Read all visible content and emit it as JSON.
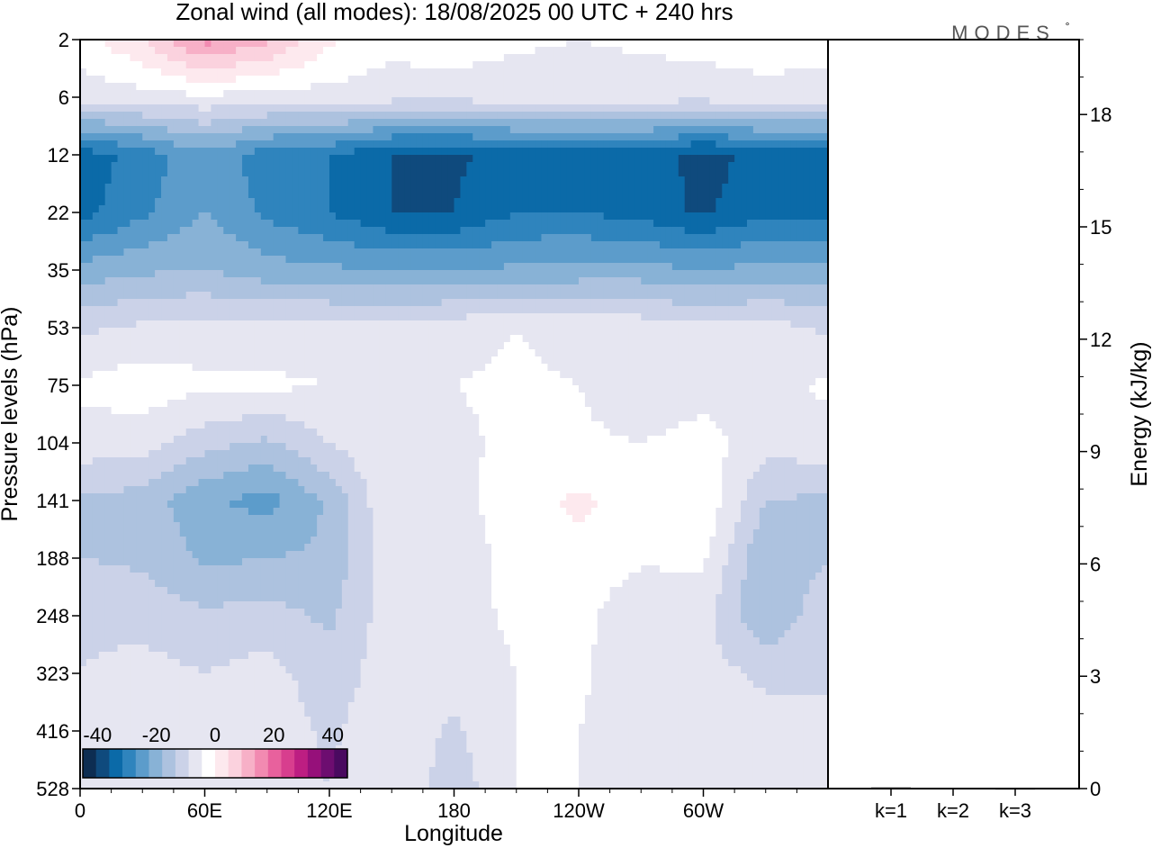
{
  "chart_data": {
    "type": "heatmap",
    "title": "Zonal wind (all modes):  18/08/2025  00 UTC  + 240 hrs",
    "logo": "MODES",
    "logo_mark": "°",
    "xlabel": "Longitude",
    "ylabel": "Pressure levels (hPa)",
    "x_ticks": [
      "0",
      "60E",
      "120E",
      "180",
      "120W",
      "60W"
    ],
    "x_tick_degrees": [
      0,
      60,
      120,
      180,
      240,
      300
    ],
    "x_range_deg": [
      0,
      360
    ],
    "y_ticks": [
      "2",
      "6",
      "12",
      "22",
      "35",
      "53",
      "75",
      "104",
      "141",
      "188",
      "248",
      "323",
      "416",
      "528"
    ],
    "y_axis": "pressure levels, top to bottom",
    "colorbar": {
      "ticks": [
        "-40",
        "-20",
        "0",
        "20",
        "40"
      ],
      "range": [
        -45,
        45
      ],
      "step": 5,
      "colors": [
        "#0d2d52",
        "#0f4a7d",
        "#0b6aa8",
        "#2f84bd",
        "#5c9ccb",
        "#88b2d6",
        "#adc2df",
        "#cbd2e8",
        "#e6e6f1",
        "#ffffff",
        "#fde9ee",
        "#fbd2de",
        "#f7b0c7",
        "#f28ab1",
        "#e8619d",
        "#d83e8e",
        "#bd1e82",
        "#96107a",
        "#6d0d70",
        "#4a0a60"
      ]
    },
    "wind_field": {
      "description": "Zonal wind (m/s) vs longitude and pressure level",
      "longitudes": [
        0,
        30,
        60,
        90,
        120,
        150,
        180,
        210,
        240,
        270,
        300,
        330,
        360
      ],
      "rows": [
        {
          "level": "2",
          "values": [
            3,
            10,
            22,
            16,
            6,
            2,
            3,
            1,
            0,
            1,
            2,
            3,
            3
          ]
        },
        {
          "level": "6",
          "values": [
            -3,
            -2,
            -1,
            -2,
            -2,
            -3,
            -3,
            -3,
            -3,
            -3,
            -3,
            -2,
            -3
          ]
        },
        {
          "level": "12",
          "values": [
            -33,
            -28,
            -21,
            -28,
            -30,
            -35,
            -36,
            -33,
            -33,
            -32,
            -37,
            -33,
            -33
          ]
        },
        {
          "level": "22",
          "values": [
            -32,
            -26,
            -20,
            -26,
            -30,
            -35,
            -35,
            -30,
            -30,
            -32,
            -36,
            -31,
            -32
          ]
        },
        {
          "level": "35",
          "values": [
            -18,
            -16,
            -15,
            -18,
            -19,
            -20,
            -20,
            -19,
            -18,
            -18,
            -20,
            -18,
            -18
          ]
        },
        {
          "level": "53",
          "values": [
            -6,
            -4,
            -3,
            -3,
            -3,
            -3,
            -2,
            0,
            -2,
            -2,
            -4,
            -3,
            -6
          ]
        },
        {
          "level": "75",
          "values": [
            1,
            3,
            1,
            1,
            0,
            -1,
            0,
            1,
            0,
            -4,
            -2,
            -2,
            1
          ]
        },
        {
          "level": "104",
          "values": [
            -2,
            -3,
            -8,
            -11,
            -5,
            0,
            -1,
            1,
            1,
            0,
            2,
            -3,
            -2
          ]
        },
        {
          "level": "141",
          "values": [
            -11,
            -12,
            -19,
            -22,
            -14,
            0,
            -2,
            3,
            6,
            3,
            4,
            -10,
            -11
          ]
        },
        {
          "level": "188",
          "values": [
            -10,
            -11,
            -16,
            -15,
            -14,
            -1,
            -3,
            2,
            4,
            1,
            1,
            -15,
            -10
          ]
        },
        {
          "level": "248",
          "values": [
            -6,
            -7,
            -9,
            -8,
            -11,
            -2,
            -2,
            1,
            2,
            -5,
            -3,
            -15,
            -6
          ]
        },
        {
          "level": "323",
          "values": [
            -5,
            -3,
            -5,
            -3,
            -8,
            -2,
            -3,
            0,
            1,
            -4,
            -3,
            -6,
            -5
          ]
        },
        {
          "level": "416",
          "values": [
            -5,
            -2,
            -3,
            -2,
            -6,
            -1,
            -6,
            0,
            0,
            -3,
            -2,
            -3,
            -5
          ]
        },
        {
          "level": "528",
          "values": [
            -4,
            -1,
            -2,
            -2,
            -5,
            -1,
            -8,
            0,
            0,
            -2,
            -1,
            -2,
            -4
          ]
        }
      ]
    },
    "energy_panel": {
      "ylabel": "Energy (kJ/kg)",
      "y_ticks": [
        0,
        3,
        6,
        9,
        12,
        15,
        18
      ],
      "ylim": [
        0,
        20
      ],
      "categories": [
        "k=1",
        "k=2",
        "k=3"
      ],
      "values": [
        0.03,
        0.02,
        0.01
      ]
    }
  }
}
